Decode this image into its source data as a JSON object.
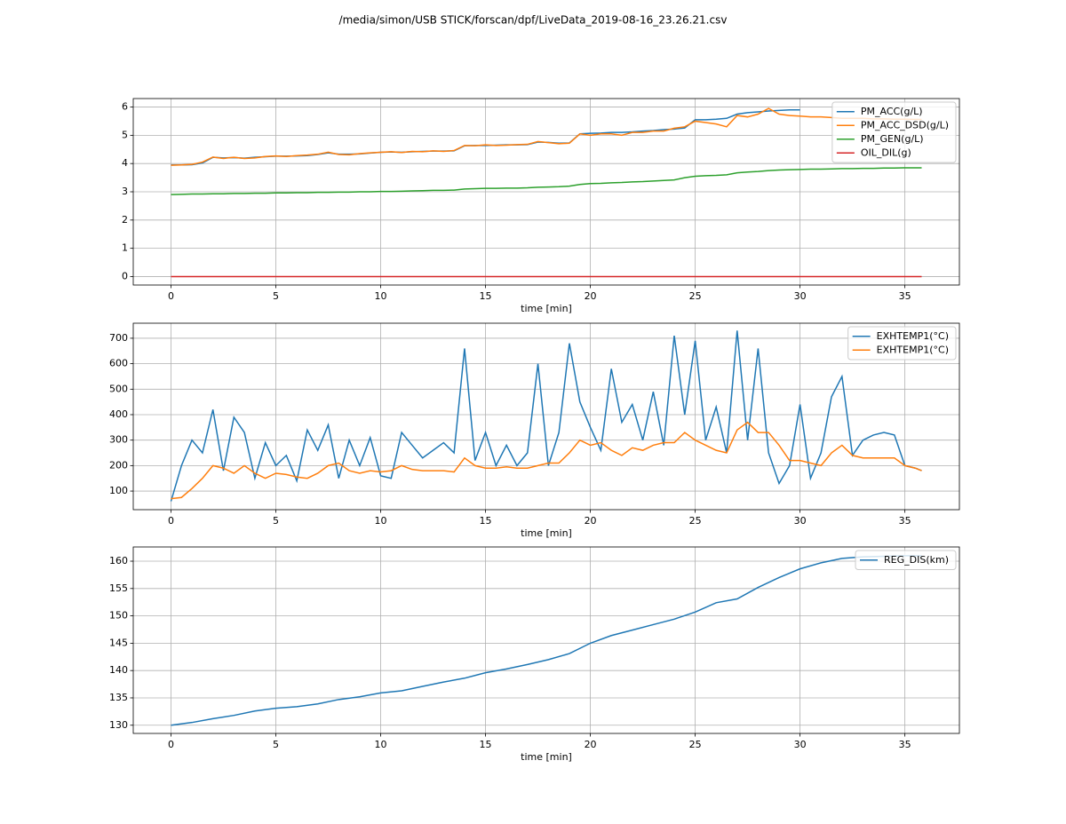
{
  "title": "/media/simon/USB STICK/forscan/dpf/LiveData_2019-08-16_23.26.21.csv",
  "chart_data": [
    {
      "type": "line",
      "xlabel": "time [min]",
      "grid": true,
      "legend": "upper right",
      "xlim": [
        -1.8,
        37.6
      ],
      "xticks": [
        0,
        5,
        10,
        15,
        20,
        25,
        30,
        35
      ],
      "ylim": [
        -0.3,
        6.3
      ],
      "yticks": [
        0,
        1,
        2,
        3,
        4,
        5,
        6
      ],
      "x": [
        0,
        0.5,
        1,
        1.5,
        2,
        2.5,
        3,
        3.5,
        4,
        4.5,
        5,
        5.5,
        6,
        6.5,
        7,
        7.5,
        8,
        8.5,
        9,
        9.5,
        10,
        10.5,
        11,
        11.5,
        12,
        12.5,
        13,
        13.5,
        14,
        14.5,
        15,
        15.5,
        16,
        16.5,
        17,
        17.5,
        18,
        18.5,
        19,
        19.5,
        20,
        20.5,
        21,
        21.5,
        22,
        22.5,
        23,
        23.5,
        24,
        24.5,
        25,
        25.5,
        26,
        26.5,
        27,
        27.5,
        28,
        28.5,
        29,
        29.5,
        30,
        30.5,
        31,
        31.5,
        32,
        32.5,
        33,
        33.5,
        34,
        34.5,
        35,
        35.5,
        35.8
      ],
      "series": [
        {
          "name": "PM_ACC(g/L)",
          "color": "#1f77b4",
          "values": [
            3.95,
            3.95,
            3.96,
            4.02,
            4.22,
            4.2,
            4.21,
            4.19,
            4.22,
            4.24,
            4.26,
            4.26,
            4.27,
            4.28,
            4.32,
            4.38,
            4.33,
            4.33,
            4.34,
            4.37,
            4.4,
            4.41,
            4.4,
            4.42,
            4.43,
            4.44,
            4.44,
            4.45,
            4.63,
            4.64,
            4.64,
            4.65,
            4.66,
            4.66,
            4.67,
            4.76,
            4.75,
            4.72,
            4.73,
            5.05,
            5.07,
            5.08,
            5.1,
            5.1,
            5.12,
            5.15,
            5.17,
            5.2,
            5.22,
            5.26,
            5.55,
            5.55,
            5.57,
            5.6,
            5.75,
            5.8,
            5.83,
            5.86,
            5.88,
            5.9,
            5.9,
            null,
            null,
            null,
            null,
            null,
            null,
            null,
            null,
            null,
            null,
            null,
            null
          ]
        },
        {
          "name": "PM_ACC_DSD(g/L)",
          "color": "#ff7f0e",
          "values": [
            3.94,
            3.95,
            3.97,
            4.05,
            4.23,
            4.18,
            4.22,
            4.18,
            4.2,
            4.25,
            4.27,
            4.25,
            4.28,
            4.3,
            4.33,
            4.4,
            4.32,
            4.31,
            4.35,
            4.38,
            4.4,
            4.42,
            4.39,
            4.43,
            4.42,
            4.45,
            4.43,
            4.46,
            4.64,
            4.63,
            4.66,
            4.64,
            4.65,
            4.67,
            4.68,
            4.78,
            4.74,
            4.7,
            4.72,
            5.05,
            5.0,
            5.05,
            5.05,
            5.0,
            5.1,
            5.1,
            5.15,
            5.15,
            5.25,
            5.3,
            5.5,
            5.45,
            5.4,
            5.3,
            5.7,
            5.65,
            5.75,
            5.95,
            5.75,
            5.7,
            5.68,
            5.65,
            5.65,
            5.63,
            5.6,
            5.6,
            5.6,
            5.58,
            5.58,
            5.57,
            5.57,
            5.56,
            5.56
          ]
        },
        {
          "name": "PM_GEN(g/L)",
          "color": "#2ca02c",
          "values": [
            2.9,
            2.91,
            2.92,
            2.92,
            2.93,
            2.93,
            2.94,
            2.94,
            2.95,
            2.95,
            2.96,
            2.96,
            2.97,
            2.97,
            2.98,
            2.98,
            2.99,
            2.99,
            3.0,
            3.0,
            3.01,
            3.01,
            3.02,
            3.03,
            3.04,
            3.05,
            3.05,
            3.06,
            3.1,
            3.11,
            3.12,
            3.12,
            3.13,
            3.13,
            3.14,
            3.16,
            3.17,
            3.18,
            3.2,
            3.26,
            3.29,
            3.3,
            3.32,
            3.33,
            3.35,
            3.36,
            3.38,
            3.4,
            3.42,
            3.5,
            3.55,
            3.57,
            3.58,
            3.6,
            3.67,
            3.7,
            3.72,
            3.75,
            3.77,
            3.78,
            3.79,
            3.8,
            3.8,
            3.81,
            3.82,
            3.82,
            3.83,
            3.83,
            3.84,
            3.84,
            3.85,
            3.85,
            3.85
          ]
        },
        {
          "name": "OIL_DIL(g)",
          "color": "#d62728",
          "values": [
            0,
            0,
            0,
            0,
            0,
            0,
            0,
            0,
            0,
            0,
            0,
            0,
            0,
            0,
            0,
            0,
            0,
            0,
            0,
            0,
            0,
            0,
            0,
            0,
            0,
            0,
            0,
            0,
            0,
            0,
            0,
            0,
            0,
            0,
            0,
            0,
            0,
            0,
            0,
            0,
            0,
            0,
            0,
            0,
            0,
            0,
            0,
            0,
            0,
            0,
            0,
            0,
            0,
            0,
            0,
            0,
            0,
            0,
            0,
            0,
            0,
            0,
            0,
            0,
            0,
            0,
            0,
            0,
            0,
            0,
            0,
            0,
            0
          ]
        }
      ]
    },
    {
      "type": "line",
      "xlabel": "time [min]",
      "grid": true,
      "legend": "upper right",
      "xlim": [
        -1.8,
        37.6
      ],
      "xticks": [
        0,
        5,
        10,
        15,
        20,
        25,
        30,
        35
      ],
      "ylim": [
        27,
        759
      ],
      "yticks": [
        100,
        200,
        300,
        400,
        500,
        600,
        700
      ],
      "x": [
        0,
        0.5,
        1,
        1.5,
        2,
        2.5,
        3,
        3.5,
        4,
        4.5,
        5,
        5.5,
        6,
        6.5,
        7,
        7.5,
        8,
        8.5,
        9,
        9.5,
        10,
        10.5,
        11,
        11.5,
        12,
        12.5,
        13,
        13.5,
        14,
        14.5,
        15,
        15.5,
        16,
        16.5,
        17,
        17.5,
        18,
        18.5,
        19,
        19.5,
        20,
        20.5,
        21,
        21.5,
        22,
        22.5,
        23,
        23.5,
        24,
        24.5,
        25,
        25.5,
        26,
        26.5,
        27,
        27.5,
        28,
        28.5,
        29,
        29.5,
        30,
        30.5,
        31,
        31.5,
        32,
        32.5,
        33,
        33.5,
        34,
        34.5,
        35,
        35.5,
        35.8
      ],
      "series": [
        {
          "name": "EXHTEMP1(°C)",
          "color": "#1f77b4",
          "values": [
            60,
            200,
            300,
            250,
            420,
            180,
            390,
            330,
            150,
            290,
            200,
            240,
            140,
            340,
            260,
            360,
            150,
            300,
            200,
            310,
            160,
            150,
            330,
            280,
            230,
            260,
            290,
            250,
            660,
            220,
            330,
            200,
            280,
            200,
            250,
            600,
            200,
            330,
            680,
            450,
            350,
            260,
            580,
            370,
            440,
            300,
            490,
            280,
            710,
            400,
            690,
            300,
            430,
            250,
            730,
            300,
            660,
            250,
            130,
            200,
            440,
            150,
            250,
            470,
            550,
            240,
            300,
            320,
            330,
            320,
            200,
            190,
            180
          ]
        },
        {
          "name": "EXHTEMP1(°C)",
          "color": "#ff7f0e",
          "values": [
            70,
            75,
            110,
            150,
            200,
            190,
            170,
            200,
            170,
            150,
            170,
            165,
            155,
            150,
            170,
            200,
            210,
            180,
            170,
            180,
            175,
            180,
            200,
            185,
            180,
            180,
            180,
            175,
            230,
            200,
            190,
            190,
            195,
            190,
            190,
            200,
            210,
            210,
            250,
            300,
            280,
            290,
            260,
            240,
            270,
            260,
            280,
            290,
            290,
            330,
            300,
            280,
            260,
            250,
            340,
            370,
            330,
            330,
            280,
            220,
            220,
            210,
            200,
            250,
            280,
            240,
            230,
            230,
            230,
            230,
            200,
            190,
            180
          ]
        }
      ]
    },
    {
      "type": "line",
      "xlabel": "time [min]",
      "grid": true,
      "legend": "upper right",
      "xlim": [
        -1.8,
        37.6
      ],
      "xticks": [
        0,
        5,
        10,
        15,
        20,
        25,
        30,
        35
      ],
      "ylim": [
        128.5,
        162.6
      ],
      "yticks": [
        130,
        135,
        140,
        145,
        150,
        155,
        160
      ],
      "x": [
        0,
        1,
        2,
        3,
        4,
        5,
        6,
        7,
        8,
        9,
        10,
        11,
        12,
        13,
        14,
        15,
        16,
        17,
        18,
        19,
        20,
        21,
        22,
        23,
        24,
        25,
        26,
        27,
        28,
        29,
        30,
        31,
        32,
        33,
        34,
        35,
        35.8
      ],
      "series": [
        {
          "name": "REG_DIS(km)",
          "color": "#1f77b4",
          "values": [
            130,
            130.5,
            131.2,
            131.8,
            132.6,
            133.1,
            133.4,
            133.9,
            134.7,
            135.2,
            135.9,
            136.3,
            137.1,
            137.9,
            138.6,
            139.6,
            140.3,
            141.1,
            142.0,
            143.1,
            145.0,
            146.4,
            147.4,
            148.4,
            149.4,
            150.7,
            152.4,
            153.1,
            155.2,
            157.0,
            158.6,
            159.7,
            160.5,
            160.8,
            160.9,
            161.0,
            161.0
          ]
        }
      ]
    }
  ]
}
